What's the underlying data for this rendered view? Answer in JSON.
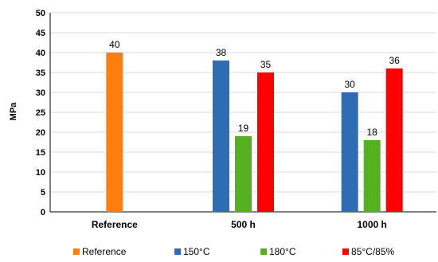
{
  "chart_data": {
    "type": "bar",
    "ylabel": "MPa",
    "xlabel": "",
    "ylim": [
      0,
      50
    ],
    "yticks": [
      0,
      5,
      10,
      15,
      20,
      25,
      30,
      35,
      40,
      45,
      50
    ],
    "grid": true,
    "legend_position": "bottom",
    "categories": [
      "Reference",
      "500 h",
      "1000 h"
    ],
    "series": [
      {
        "name": "Reference",
        "color": "#ff7f0e",
        "values": [
          40,
          null,
          null
        ]
      },
      {
        "name": "150°C",
        "color": "#2e6db4",
        "values": [
          null,
          38,
          30
        ]
      },
      {
        "name": "180°C",
        "color": "#55b020",
        "values": [
          null,
          19,
          18
        ]
      },
      {
        "name": "85°C/85%",
        "color": "#ff0000",
        "values": [
          null,
          35,
          36
        ]
      }
    ]
  }
}
